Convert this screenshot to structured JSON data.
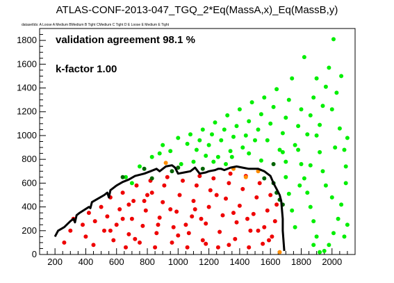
{
  "title": "ATLAS-CONF-2013-047_TGQ_2*Eq(MassA,x)_Eq(MassB,y)",
  "subtitle": "datasetIds: A Loose A Medium BMedium B Tight CMedium C Tight D E Loose E Medium E Tight",
  "chart_data": {
    "type": "scatter",
    "title": "ATLAS-CONF-2013-047_TGQ_2*Eq(MassA,x)_Eq(MassB,y)",
    "xlabel": "",
    "ylabel": "",
    "xlim": [
      100,
      2150
    ],
    "ylim": [
      0,
      1900
    ],
    "x_ticks": [
      200,
      400,
      600,
      800,
      1000,
      1200,
      1400,
      1600,
      1800,
      2000
    ],
    "y_ticks": [
      0,
      200,
      400,
      600,
      800,
      1000,
      1200,
      1400,
      1600,
      1800
    ],
    "grid": false,
    "annotations": [
      "validation agreement 98.1 %",
      "k-factor 1.00"
    ],
    "colors": {
      "excluded_agree": "#ee0000",
      "allowed_agree": "#00ee00",
      "allowed_dark": "#006400",
      "disagree": "#ff8c00",
      "contour": "#000000"
    },
    "series": [
      {
        "color": "#ee0000",
        "points": [
          [
            260,
            100
          ],
          [
            300,
            200
          ],
          [
            320,
            300
          ],
          [
            380,
            250
          ],
          [
            400,
            150
          ],
          [
            420,
            350
          ],
          [
            450,
            80
          ],
          [
            460,
            280
          ],
          [
            500,
            400
          ],
          [
            520,
            200
          ],
          [
            540,
            320
          ],
          [
            560,
            480
          ],
          [
            580,
            120
          ],
          [
            600,
            250
          ],
          [
            620,
            380
          ],
          [
            640,
            520
          ],
          [
            660,
            60
          ],
          [
            680,
            170
          ],
          [
            700,
            300
          ],
          [
            710,
            450
          ],
          [
            730,
            580
          ],
          [
            750,
            100
          ],
          [
            770,
            240
          ],
          [
            790,
            370
          ],
          [
            800,
            500
          ],
          [
            820,
            620
          ],
          [
            850,
            60
          ],
          [
            860,
            180
          ],
          [
            880,
            310
          ],
          [
            900,
            440
          ],
          [
            910,
            580
          ],
          [
            930,
            650
          ],
          [
            960,
            100
          ],
          [
            970,
            230
          ],
          [
            990,
            360
          ],
          [
            1010,
            500
          ],
          [
            1030,
            620
          ],
          [
            1060,
            60
          ],
          [
            1070,
            180
          ],
          [
            1090,
            320
          ],
          [
            1100,
            450
          ],
          [
            1120,
            580
          ],
          [
            1140,
            660
          ],
          [
            1160,
            120
          ],
          [
            1180,
            260
          ],
          [
            1200,
            400
          ],
          [
            1210,
            540
          ],
          [
            1230,
            640
          ],
          [
            1260,
            60
          ],
          [
            1270,
            190
          ],
          [
            1290,
            330
          ],
          [
            1310,
            470
          ],
          [
            1330,
            600
          ],
          [
            1340,
            680
          ],
          [
            1370,
            130
          ],
          [
            1380,
            270
          ],
          [
            1400,
            410
          ],
          [
            1420,
            550
          ],
          [
            1440,
            660
          ],
          [
            1460,
            60
          ],
          [
            1470,
            200
          ],
          [
            1490,
            340
          ],
          [
            1510,
            480
          ],
          [
            1530,
            600
          ],
          [
            1550,
            90
          ],
          [
            1560,
            230
          ],
          [
            1580,
            370
          ],
          [
            1600,
            500
          ],
          [
            1610,
            150
          ],
          [
            1630,
            280
          ],
          [
            1640,
            420
          ],
          [
            1330,
            80
          ],
          [
            1150,
            300
          ],
          [
            950,
            380
          ],
          [
            780,
            450
          ],
          [
            640,
            300
          ],
          [
            720,
            130
          ],
          [
            1050,
            250
          ],
          [
            1250,
            500
          ],
          [
            1450,
            300
          ],
          [
            1520,
            200
          ],
          [
            1590,
            120
          ],
          [
            870,
            250
          ],
          [
            1000,
            160
          ],
          [
            1180,
            90
          ],
          [
            1360,
            350
          ],
          [
            560,
            200
          ],
          [
            680,
            420
          ],
          [
            830,
            520
          ],
          [
            1110,
            380
          ]
        ]
      },
      {
        "color": "#00ee00",
        "points": [
          [
            660,
            650
          ],
          [
            700,
            600
          ],
          [
            750,
            740
          ],
          [
            830,
            820
          ],
          [
            880,
            850
          ],
          [
            900,
            920
          ],
          [
            950,
            870
          ],
          [
            1000,
            980
          ],
          [
            1020,
            760
          ],
          [
            1060,
            930
          ],
          [
            1080,
            1010
          ],
          [
            1100,
            780
          ],
          [
            1120,
            880
          ],
          [
            1140,
            960
          ],
          [
            1160,
            1050
          ],
          [
            1180,
            830
          ],
          [
            1200,
            920
          ],
          [
            1220,
            1010
          ],
          [
            1240,
            1110
          ],
          [
            1260,
            820
          ],
          [
            1280,
            960
          ],
          [
            1300,
            1050
          ],
          [
            1320,
            1170
          ],
          [
            1340,
            870
          ],
          [
            1360,
            990
          ],
          [
            1380,
            1080
          ],
          [
            1400,
            1220
          ],
          [
            1420,
            900
          ],
          [
            1440,
            1000
          ],
          [
            1460,
            1120
          ],
          [
            1480,
            1280
          ],
          [
            1500,
            960
          ],
          [
            1520,
            1050
          ],
          [
            1540,
            1180
          ],
          [
            1560,
            1320
          ],
          [
            1580,
            960
          ],
          [
            1600,
            1100
          ],
          [
            1620,
            1240
          ],
          [
            1640,
            1390
          ],
          [
            1660,
            880
          ],
          [
            1680,
            1020
          ],
          [
            1700,
            1150
          ],
          [
            1720,
            1300
          ],
          [
            1740,
            1480
          ],
          [
            1760,
            920
          ],
          [
            1780,
            1080
          ],
          [
            1800,
            1220
          ],
          [
            1820,
            1660
          ],
          [
            1840,
            1010
          ],
          [
            1860,
            1170
          ],
          [
            1880,
            1320
          ],
          [
            1900,
            1480
          ],
          [
            1920,
            1090
          ],
          [
            1940,
            1250
          ],
          [
            1960,
            1410
          ],
          [
            1980,
            1570
          ],
          [
            2000,
            1220
          ],
          [
            2010,
            1810
          ],
          [
            2030,
            1360
          ],
          [
            2050,
            1060
          ],
          [
            2060,
            1500
          ],
          [
            2080,
            880
          ],
          [
            2090,
            740
          ],
          [
            2100,
            980
          ],
          [
            2090,
            600
          ],
          [
            2060,
            420
          ],
          [
            2040,
            300
          ],
          [
            2010,
            180
          ],
          [
            1980,
            80
          ],
          [
            1950,
            30
          ],
          [
            1920,
            20
          ],
          [
            1900,
            150
          ],
          [
            1880,
            280
          ],
          [
            1860,
            400
          ],
          [
            1840,
            520
          ],
          [
            1820,
            640
          ],
          [
            1800,
            760
          ],
          [
            1780,
            880
          ],
          [
            1760,
            230
          ],
          [
            1740,
            370
          ],
          [
            1720,
            510
          ],
          [
            1700,
            650
          ],
          [
            1700,
            780
          ],
          [
            1960,
            580
          ],
          [
            1940,
            700
          ],
          [
            1920,
            860
          ],
          [
            1900,
            1000
          ],
          [
            2020,
            900
          ],
          [
            1880,
            80
          ],
          [
            1680,
            860
          ],
          [
            2100,
            250
          ],
          [
            2080,
            150
          ],
          [
            1350,
            820
          ],
          [
            1230,
            780
          ],
          [
            1310,
            760
          ],
          [
            1460,
            850
          ],
          [
            1540,
            790
          ],
          [
            2000,
            480
          ],
          [
            1860,
            750
          ],
          [
            1790,
            580
          ]
        ]
      },
      {
        "color": "#006400",
        "points": [
          [
            640,
            650
          ],
          [
            780,
            720
          ],
          [
            830,
            640
          ],
          [
            960,
            700
          ],
          [
            1000,
            730
          ],
          [
            1160,
            720
          ],
          [
            1560,
            640
          ],
          [
            1620,
            600
          ],
          [
            1640,
            520
          ],
          [
            1660,
            460
          ],
          [
            1680,
            420
          ],
          [
            1620,
            760
          ]
        ]
      },
      {
        "color": "#ff8c00",
        "points": [
          [
            920,
            770
          ],
          [
            1360,
            720
          ],
          [
            1440,
            650
          ],
          [
            1660,
            20
          ],
          [
            1520,
            700
          ]
        ]
      }
    ],
    "contour": {
      "name": "",
      "points": [
        [
          200,
          150
        ],
        [
          220,
          200
        ],
        [
          260,
          230
        ],
        [
          300,
          280
        ],
        [
          320,
          300
        ],
        [
          330,
          270
        ],
        [
          340,
          330
        ],
        [
          360,
          350
        ],
        [
          420,
          400
        ],
        [
          430,
          390
        ],
        [
          440,
          440
        ],
        [
          480,
          470
        ],
        [
          520,
          500
        ],
        [
          540,
          520
        ],
        [
          550,
          480
        ],
        [
          560,
          540
        ],
        [
          600,
          580
        ],
        [
          640,
          610
        ],
        [
          680,
          630
        ],
        [
          720,
          660
        ],
        [
          780,
          680
        ],
        [
          820,
          700
        ],
        [
          860,
          720
        ],
        [
          880,
          700
        ],
        [
          920,
          740
        ],
        [
          960,
          750
        ],
        [
          980,
          730
        ],
        [
          1000,
          680
        ],
        [
          1040,
          690
        ],
        [
          1080,
          700
        ],
        [
          1110,
          730
        ],
        [
          1140,
          680
        ],
        [
          1180,
          690
        ],
        [
          1200,
          700
        ],
        [
          1240,
          710
        ],
        [
          1260,
          720
        ],
        [
          1280,
          720
        ],
        [
          1300,
          710
        ],
        [
          1340,
          730
        ],
        [
          1380,
          740
        ],
        [
          1420,
          730
        ],
        [
          1460,
          720
        ],
        [
          1520,
          720
        ],
        [
          1560,
          700
        ],
        [
          1600,
          660
        ],
        [
          1620,
          600
        ],
        [
          1640,
          550
        ],
        [
          1660,
          500
        ],
        [
          1670,
          450
        ],
        [
          1680,
          300
        ],
        [
          1680,
          200
        ],
        [
          1690,
          30
        ]
      ]
    }
  }
}
